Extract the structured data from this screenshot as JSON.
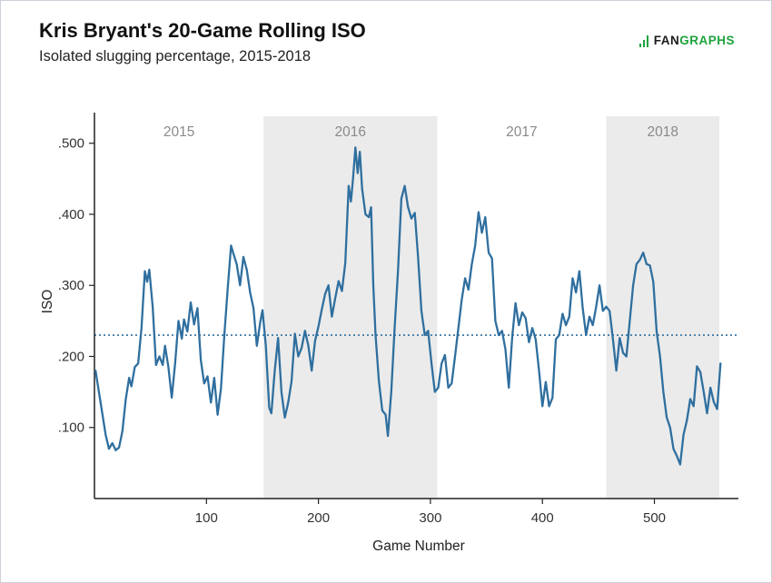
{
  "header": {
    "title": "Kris Bryant's 20-Game Rolling ISO",
    "subtitle": "Isolated slugging percentage, 2015-2018"
  },
  "logo": {
    "fan": "FAN",
    "graphs": "GRAPHS",
    "green": "#1da33c"
  },
  "chart_data": {
    "type": "line",
    "title": "Kris Bryant's 20-Game Rolling ISO",
    "subtitle": "Isolated slugging percentage, 2015-2018",
    "xlabel": "Game Number",
    "ylabel": "ISO",
    "xlim": [
      0,
      575
    ],
    "ylim": [
      0,
      0.538
    ],
    "x_ticks": [
      100,
      200,
      300,
      400,
      500
    ],
    "y_ticks": [
      0.1,
      0.2,
      0.3,
      0.4,
      0.5
    ],
    "y_tick_labels": [
      ".100",
      ".200",
      ".300",
      ".400",
      ".500"
    ],
    "reference_line": 0.23,
    "grid": false,
    "legend": "none",
    "line_color": "#2f6f9f",
    "band_color": "#ebebeb",
    "season_label_color": "#8a8a8a",
    "season_bands": [
      {
        "label": "2015",
        "start": 0,
        "end": 151,
        "shaded": false
      },
      {
        "label": "2016",
        "start": 151,
        "end": 306,
        "shaded": true
      },
      {
        "label": "2017",
        "start": 306,
        "end": 457,
        "shaded": false
      },
      {
        "label": "2018",
        "start": 457,
        "end": 558,
        "shaded": true
      }
    ],
    "series": [
      {
        "name": "20-game rolling ISO",
        "points": [
          [
            1,
            0.18
          ],
          [
            4,
            0.15
          ],
          [
            7,
            0.12
          ],
          [
            10,
            0.09
          ],
          [
            13,
            0.07
          ],
          [
            16,
            0.078
          ],
          [
            19,
            0.068
          ],
          [
            22,
            0.072
          ],
          [
            25,
            0.095
          ],
          [
            28,
            0.14
          ],
          [
            31,
            0.17
          ],
          [
            33,
            0.158
          ],
          [
            36,
            0.185
          ],
          [
            39,
            0.19
          ],
          [
            42,
            0.24
          ],
          [
            45,
            0.32
          ],
          [
            47,
            0.305
          ],
          [
            49,
            0.322
          ],
          [
            52,
            0.27
          ],
          [
            55,
            0.188
          ],
          [
            58,
            0.2
          ],
          [
            61,
            0.188
          ],
          [
            63,
            0.215
          ],
          [
            66,
            0.185
          ],
          [
            69,
            0.142
          ],
          [
            72,
            0.19
          ],
          [
            75,
            0.25
          ],
          [
            78,
            0.225
          ],
          [
            80,
            0.252
          ],
          [
            83,
            0.235
          ],
          [
            86,
            0.276
          ],
          [
            89,
            0.245
          ],
          [
            92,
            0.268
          ],
          [
            95,
            0.195
          ],
          [
            98,
            0.162
          ],
          [
            101,
            0.172
          ],
          [
            104,
            0.135
          ],
          [
            107,
            0.17
          ],
          [
            110,
            0.118
          ],
          [
            113,
            0.155
          ],
          [
            116,
            0.23
          ],
          [
            119,
            0.295
          ],
          [
            122,
            0.356
          ],
          [
            124,
            0.345
          ],
          [
            127,
            0.33
          ],
          [
            130,
            0.3
          ],
          [
            133,
            0.34
          ],
          [
            136,
            0.322
          ],
          [
            139,
            0.29
          ],
          [
            142,
            0.268
          ],
          [
            145,
            0.215
          ],
          [
            148,
            0.248
          ],
          [
            150,
            0.265
          ],
          [
            153,
            0.215
          ],
          [
            156,
            0.128
          ],
          [
            158,
            0.12
          ],
          [
            161,
            0.18
          ],
          [
            164,
            0.226
          ],
          [
            167,
            0.15
          ],
          [
            170,
            0.114
          ],
          [
            173,
            0.135
          ],
          [
            176,
            0.165
          ],
          [
            179,
            0.232
          ],
          [
            182,
            0.2
          ],
          [
            185,
            0.212
          ],
          [
            188,
            0.236
          ],
          [
            191,
            0.215
          ],
          [
            194,
            0.18
          ],
          [
            197,
            0.222
          ],
          [
            200,
            0.242
          ],
          [
            203,
            0.266
          ],
          [
            206,
            0.288
          ],
          [
            209,
            0.3
          ],
          [
            212,
            0.256
          ],
          [
            215,
            0.282
          ],
          [
            218,
            0.306
          ],
          [
            221,
            0.292
          ],
          [
            224,
            0.332
          ],
          [
            227,
            0.44
          ],
          [
            229,
            0.418
          ],
          [
            231,
            0.452
          ],
          [
            233,
            0.494
          ],
          [
            235,
            0.458
          ],
          [
            237,
            0.488
          ],
          [
            239,
            0.436
          ],
          [
            242,
            0.4
          ],
          [
            245,
            0.396
          ],
          [
            247,
            0.41
          ],
          [
            249,
            0.3
          ],
          [
            251,
            0.23
          ],
          [
            254,
            0.165
          ],
          [
            257,
            0.124
          ],
          [
            260,
            0.118
          ],
          [
            262,
            0.088
          ],
          [
            265,
            0.15
          ],
          [
            268,
            0.24
          ],
          [
            271,
            0.32
          ],
          [
            274,
            0.422
          ],
          [
            277,
            0.44
          ],
          [
            280,
            0.41
          ],
          [
            283,
            0.394
          ],
          [
            286,
            0.402
          ],
          [
            289,
            0.34
          ],
          [
            292,
            0.264
          ],
          [
            295,
            0.23
          ],
          [
            298,
            0.236
          ],
          [
            301,
            0.19
          ],
          [
            304,
            0.15
          ],
          [
            307,
            0.156
          ],
          [
            310,
            0.19
          ],
          [
            313,
            0.202
          ],
          [
            316,
            0.156
          ],
          [
            319,
            0.162
          ],
          [
            322,
            0.2
          ],
          [
            325,
            0.24
          ],
          [
            328,
            0.28
          ],
          [
            331,
            0.31
          ],
          [
            334,
            0.294
          ],
          [
            337,
            0.33
          ],
          [
            340,
            0.356
          ],
          [
            343,
            0.403
          ],
          [
            346,
            0.374
          ],
          [
            349,
            0.396
          ],
          [
            352,
            0.346
          ],
          [
            355,
            0.338
          ],
          [
            358,
            0.25
          ],
          [
            361,
            0.23
          ],
          [
            364,
            0.236
          ],
          [
            367,
            0.21
          ],
          [
            370,
            0.156
          ],
          [
            373,
            0.226
          ],
          [
            376,
            0.275
          ],
          [
            379,
            0.244
          ],
          [
            382,
            0.262
          ],
          [
            385,
            0.254
          ],
          [
            388,
            0.22
          ],
          [
            391,
            0.24
          ],
          [
            394,
            0.224
          ],
          [
            397,
            0.18
          ],
          [
            400,
            0.13
          ],
          [
            403,
            0.164
          ],
          [
            406,
            0.13
          ],
          [
            409,
            0.142
          ],
          [
            412,
            0.224
          ],
          [
            415,
            0.23
          ],
          [
            418,
            0.26
          ],
          [
            421,
            0.244
          ],
          [
            424,
            0.256
          ],
          [
            427,
            0.31
          ],
          [
            430,
            0.29
          ],
          [
            433,
            0.32
          ],
          [
            436,
            0.268
          ],
          [
            439,
            0.23
          ],
          [
            442,
            0.256
          ],
          [
            445,
            0.244
          ],
          [
            448,
            0.27
          ],
          [
            451,
            0.3
          ],
          [
            454,
            0.264
          ],
          [
            457,
            0.27
          ],
          [
            460,
            0.264
          ],
          [
            463,
            0.224
          ],
          [
            466,
            0.18
          ],
          [
            469,
            0.226
          ],
          [
            472,
            0.205
          ],
          [
            475,
            0.2
          ],
          [
            478,
            0.25
          ],
          [
            481,
            0.3
          ],
          [
            484,
            0.33
          ],
          [
            487,
            0.336
          ],
          [
            490,
            0.346
          ],
          [
            493,
            0.33
          ],
          [
            496,
            0.328
          ],
          [
            499,
            0.305
          ],
          [
            502,
            0.235
          ],
          [
            505,
            0.2
          ],
          [
            508,
            0.15
          ],
          [
            511,
            0.114
          ],
          [
            514,
            0.1
          ],
          [
            517,
            0.07
          ],
          [
            520,
            0.06
          ],
          [
            523,
            0.048
          ],
          [
            526,
            0.09
          ],
          [
            529,
            0.11
          ],
          [
            532,
            0.14
          ],
          [
            535,
            0.13
          ],
          [
            538,
            0.186
          ],
          [
            541,
            0.178
          ],
          [
            544,
            0.15
          ],
          [
            547,
            0.12
          ],
          [
            550,
            0.156
          ],
          [
            553,
            0.136
          ],
          [
            556,
            0.126
          ],
          [
            559,
            0.19
          ]
        ]
      }
    ]
  }
}
